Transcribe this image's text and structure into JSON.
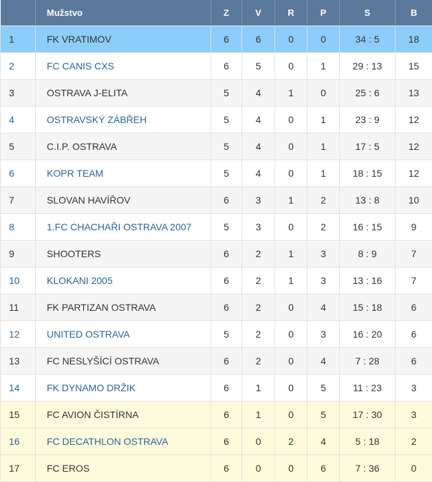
{
  "table": {
    "headers": {
      "pos": "",
      "team": "Mužstvo",
      "z": "Z",
      "v": "V",
      "r": "R",
      "p": "P",
      "s": "S",
      "b": "B"
    },
    "rows": [
      {
        "pos": "1",
        "team": "FK VRATIMOV",
        "z": "6",
        "v": "6",
        "r": "0",
        "p": "0",
        "s": "34 : 5",
        "b": "18"
      },
      {
        "pos": "2",
        "team": "FC CANIS CXS",
        "z": "6",
        "v": "5",
        "r": "0",
        "p": "1",
        "s": "29 : 13",
        "b": "15"
      },
      {
        "pos": "3",
        "team": "OSTRAVA J-ELITA",
        "z": "5",
        "v": "4",
        "r": "1",
        "p": "0",
        "s": "25 : 6",
        "b": "13"
      },
      {
        "pos": "4",
        "team": "OSTRAVSKÝ ZÁBŘEH",
        "z": "5",
        "v": "4",
        "r": "0",
        "p": "1",
        "s": "23 : 9",
        "b": "12"
      },
      {
        "pos": "5",
        "team": "C.I.P. OSTRAVA",
        "z": "5",
        "v": "4",
        "r": "0",
        "p": "1",
        "s": "17 : 5",
        "b": "12"
      },
      {
        "pos": "6",
        "team": "KOPR TEAM",
        "z": "5",
        "v": "4",
        "r": "0",
        "p": "1",
        "s": "18 : 15",
        "b": "12"
      },
      {
        "pos": "7",
        "team": "SLOVAN HAVÍŘOV",
        "z": "6",
        "v": "3",
        "r": "1",
        "p": "2",
        "s": "13 : 8",
        "b": "10"
      },
      {
        "pos": "8",
        "team": "1.FC CHACHAŘI OSTRAVA 2007",
        "z": "5",
        "v": "3",
        "r": "0",
        "p": "2",
        "s": "16 : 15",
        "b": "9"
      },
      {
        "pos": "9",
        "team": "SHOOTERS",
        "z": "6",
        "v": "2",
        "r": "1",
        "p": "3",
        "s": "8 : 9",
        "b": "7"
      },
      {
        "pos": "10",
        "team": "KLOKANI 2005",
        "z": "6",
        "v": "2",
        "r": "1",
        "p": "3",
        "s": "13 : 16",
        "b": "7"
      },
      {
        "pos": "11",
        "team": "FK PARTIZAN OSTRAVA",
        "z": "6",
        "v": "2",
        "r": "0",
        "p": "4",
        "s": "15 : 18",
        "b": "6"
      },
      {
        "pos": "12",
        "team": "UNITED OSTRAVA",
        "z": "5",
        "v": "2",
        "r": "0",
        "p": "3",
        "s": "16 : 20",
        "b": "6"
      },
      {
        "pos": "13",
        "team": "FC NESLYŠÍCÍ OSTRAVA",
        "z": "6",
        "v": "2",
        "r": "0",
        "p": "4",
        "s": "7 : 28",
        "b": "6"
      },
      {
        "pos": "14",
        "team": "FK DYNAMO DRŽIK",
        "z": "6",
        "v": "1",
        "r": "0",
        "p": "5",
        "s": "11 : 23",
        "b": "3"
      },
      {
        "pos": "15",
        "team": "FC AVION ČISTÍRNA",
        "z": "6",
        "v": "1",
        "r": "0",
        "p": "5",
        "s": "17 : 30",
        "b": "3"
      },
      {
        "pos": "16",
        "team": "FC DECATHLON OSTRAVA",
        "z": "6",
        "v": "0",
        "r": "2",
        "p": "4",
        "s": "5 : 18",
        "b": "2"
      },
      {
        "pos": "17",
        "team": "FC EROS",
        "z": "6",
        "v": "0",
        "r": "0",
        "p": "6",
        "s": "7 : 36",
        "b": "0"
      }
    ],
    "row_styles": [
      "highlight",
      "white",
      "grey",
      "white",
      "grey",
      "white",
      "grey",
      "white",
      "grey",
      "white",
      "grey",
      "white",
      "grey",
      "white",
      "yellow",
      "yellow",
      "yellow"
    ],
    "colors": {
      "header_bg": "#5b7a9b",
      "highlight_row": "#8ccdf9",
      "relegation_row": "#fdfbdc",
      "link_text": "#2a6496"
    }
  }
}
